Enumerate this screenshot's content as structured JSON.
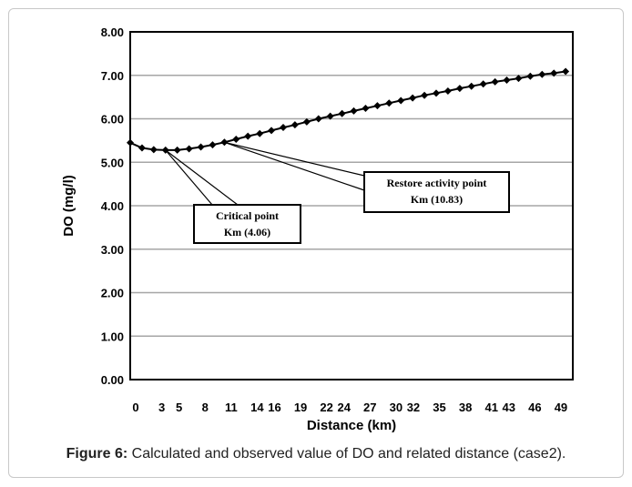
{
  "chart_data": {
    "type": "line",
    "title": "",
    "xlabel": "Distance (km)",
    "ylabel": "DO (mg/l)",
    "ylim": [
      0,
      8
    ],
    "yticks": [
      "0.00",
      "1.00",
      "2.00",
      "3.00",
      "4.00",
      "5.00",
      "6.00",
      "7.00",
      "8.00"
    ],
    "xlim": [
      0,
      51
    ],
    "xticks": [
      "0",
      "3",
      "5",
      "8",
      "11",
      "14",
      "16",
      "19",
      "22",
      "24",
      "27",
      "30",
      "32",
      "35",
      "38",
      "41",
      "43",
      "46",
      "49"
    ],
    "xtick_positions": [
      0,
      3,
      5,
      8,
      11,
      14,
      16,
      19,
      22,
      24,
      27,
      30,
      32,
      35,
      38,
      41,
      43,
      46,
      49
    ],
    "grid": "horizontal",
    "series": [
      {
        "name": "",
        "x": [
          0,
          1.36,
          2.71,
          4.07,
          5.42,
          6.78,
          8.14,
          9.49,
          10.85,
          12.2,
          13.56,
          14.92,
          16.27,
          17.63,
          18.98,
          20.34,
          21.7,
          23.05,
          24.41,
          25.76,
          27.12,
          28.48,
          29.83,
          31.19,
          32.54,
          33.9,
          35.26,
          36.61,
          37.97,
          39.32,
          40.68,
          42.04,
          43.39,
          44.75,
          46.1,
          47.46,
          48.82,
          50.17
        ],
        "values": [
          5.45,
          5.33,
          5.29,
          5.28,
          5.28,
          5.31,
          5.35,
          5.4,
          5.46,
          5.53,
          5.6,
          5.66,
          5.73,
          5.8,
          5.86,
          5.93,
          6.0,
          6.06,
          6.12,
          6.18,
          6.24,
          6.3,
          6.36,
          6.42,
          6.48,
          6.54,
          6.59,
          6.64,
          6.7,
          6.75,
          6.8,
          6.85,
          6.89,
          6.93,
          6.98,
          7.02,
          7.05,
          7.09
        ]
      }
    ],
    "annotations": [
      {
        "line1": "Critical point",
        "line2": "Km (4.06)",
        "x": 4.06,
        "y": 5.28
      },
      {
        "line1": "Restore activity point",
        "line2": "Km (10.83)",
        "x": 10.83,
        "y": 5.46
      }
    ]
  },
  "caption": {
    "label": "Figure 6:",
    "text": " Calculated and observed value of DO and related distance (case2)."
  }
}
